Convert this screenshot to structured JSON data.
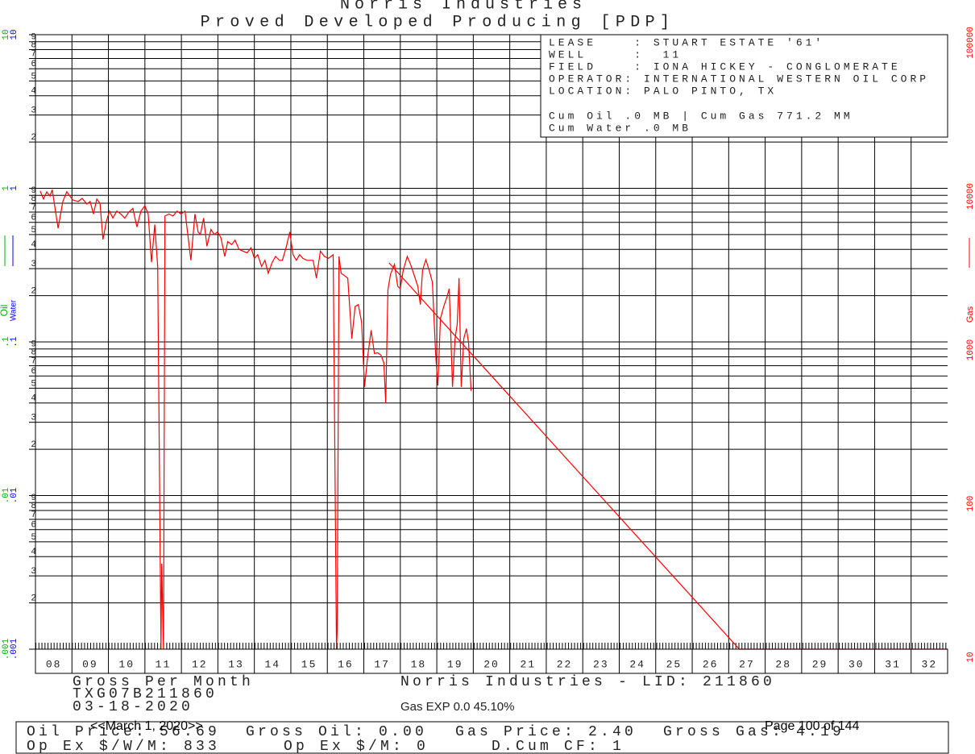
{
  "chart_data": {
    "type": "line",
    "title": "Norris Industries",
    "subtitle": "Proved Developed Producing [PDP]",
    "log_scale": true,
    "grid": true,
    "xlim": [
      8,
      33
    ],
    "xticks": [
      {
        "value": 8,
        "label": "08"
      },
      {
        "value": 9,
        "label": "09"
      },
      10,
      11,
      12,
      13,
      14,
      15,
      16,
      17,
      18,
      19,
      20,
      21,
      22,
      23,
      24,
      25,
      26,
      27,
      28,
      29,
      30,
      31,
      32
    ],
    "ylim": [
      0.001,
      10
    ],
    "yticks": [
      {
        "value": 0.001,
        "label": ".001"
      },
      {
        "value": 0.01,
        "label": ".01"
      },
      {
        "value": 0.1,
        "label": ".1"
      },
      1,
      10
    ],
    "minor_ticks": [
      2,
      3,
      4,
      5,
      6,
      7,
      8,
      9
    ],
    "y_labels": [
      {
        "text": "Oil",
        "color": "#00b000"
      },
      {
        "text": "Water",
        "color": "#0000ff"
      }
    ],
    "y2lim": [
      10,
      100000
    ],
    "y2ticks": [
      10,
      100,
      1000,
      10000,
      100000
    ],
    "y2_label": "Gas",
    "y2_color": "#ff0000",
    "series": [
      {
        "color": "#ff0000",
        "axis": "y2",
        "x": [
          8.13,
          8.22,
          8.31,
          8.4,
          8.46,
          8.62,
          8.75,
          8.86,
          9.02,
          9.17,
          9.28,
          9.41,
          9.5,
          9.59,
          9.68,
          9.77,
          9.85,
          9.94,
          10.03,
          10.12,
          10.23,
          10.34,
          10.45,
          10.56,
          10.67,
          10.78,
          10.89,
          11.0,
          11.09,
          11.18,
          11.27,
          11.35,
          11.44,
          11.46,
          11.51,
          11.55,
          11.66,
          11.77,
          11.88,
          11.99,
          12.1,
          12.26,
          12.37,
          12.46,
          12.52,
          12.61,
          12.7,
          12.81,
          12.9,
          12.99,
          13.08,
          13.19,
          13.27,
          13.38,
          13.47,
          13.58,
          13.69,
          13.8,
          13.91,
          14.0,
          14.09,
          14.2,
          14.29,
          14.38,
          14.49,
          14.58,
          14.69,
          14.77,
          14.88,
          14.97,
          15.06,
          15.15,
          15.24,
          15.33,
          15.44,
          15.52,
          15.61,
          15.7,
          15.81,
          15.92,
          16.03,
          16.16,
          16.25,
          16.27,
          16.32,
          16.38,
          16.47,
          16.56,
          16.67,
          16.76,
          16.85,
          16.94,
          17.02,
          17.11,
          17.2,
          17.29,
          17.38,
          17.47,
          17.55,
          17.6,
          17.66,
          17.73,
          17.84,
          17.93,
          18.0,
          18.08,
          18.19,
          18.28,
          18.37,
          18.48,
          18.55,
          18.61,
          18.7,
          18.79,
          18.88,
          18.97,
          19.03,
          19.1,
          19.19,
          19.28,
          19.34,
          19.43,
          19.5,
          19.56,
          19.61,
          19.67,
          19.74,
          19.81,
          19.87,
          19.94
        ],
        "values": [
          9600,
          8500,
          9470,
          8900,
          9800,
          5500,
          8200,
          9500,
          8400,
          8200,
          8600,
          7900,
          8200,
          6800,
          8500,
          8000,
          4640,
          6050,
          7100,
          6400,
          7100,
          6800,
          6400,
          7000,
          7400,
          5600,
          7100,
          7700,
          6800,
          3300,
          5800,
          3100,
          10,
          36,
          10,
          6600,
          6800,
          6600,
          7100,
          6800,
          7100,
          3400,
          6800,
          5200,
          5000,
          6400,
          4200,
          5400,
          5000,
          5200,
          4800,
          3600,
          4500,
          4300,
          4600,
          4000,
          3900,
          3800,
          4100,
          3500,
          3700,
          3100,
          3400,
          2800,
          3300,
          3600,
          3400,
          3400,
          4200,
          5200,
          3700,
          3400,
          3700,
          3500,
          3400,
          3400,
          3400,
          2600,
          3900,
          3600,
          3500,
          3700,
          10,
          13.5,
          3600,
          2800,
          2700,
          2600,
          1050,
          1700,
          1750,
          1340,
          510,
          820,
          1190,
          840,
          850,
          820,
          730,
          400,
          2170,
          2760,
          3200,
          2300,
          2220,
          2930,
          3600,
          3200,
          2760,
          2300,
          1750,
          2930,
          3430,
          2930,
          2450,
          820,
          520,
          1420,
          1700,
          1970,
          2220,
          510,
          1050,
          1300,
          2600,
          510,
          1050,
          1220,
          990,
          480
        ]
      },
      {
        "color": "#ff0000",
        "axis": "y2",
        "x": [
          17.69,
          27.29,
          33
        ],
        "values": [
          3270,
          10,
          10
        ]
      }
    ],
    "info": [
      "LEASE    : STUART ESTATE '61'",
      "WELL     :  11",
      "FIELD    : IONA HICKEY - CONGLOMERATE",
      "OPERATOR: INTERNATIONAL WESTERN OIL CORP",
      "LOCATION: PALO PINTO, TX",
      "Cum Oil .0 MB | Cum Gas 771.2 MM",
      "Cum Water .0 MB"
    ],
    "footer": {
      "left": [
        "Gross Per Month",
        "TXG07B211860",
        "03-18-2020"
      ],
      "center": "Norris Industries - LID: 211860",
      "gas_exp": "Gas EXP 0.0 45.10%",
      "date": "<<March 1, 2020>>",
      "page": "Page 100 of 144",
      "row1": [
        "Oil Price: 56.69",
        "Gross Oil: 0.00",
        "Gas Price: 2.40",
        "Gross Gas: 4.19"
      ],
      "row2": [
        "Op Ex $/W/M: 833",
        "Op Ex $/M: 0",
        "D.Cum CF: 1"
      ]
    }
  }
}
